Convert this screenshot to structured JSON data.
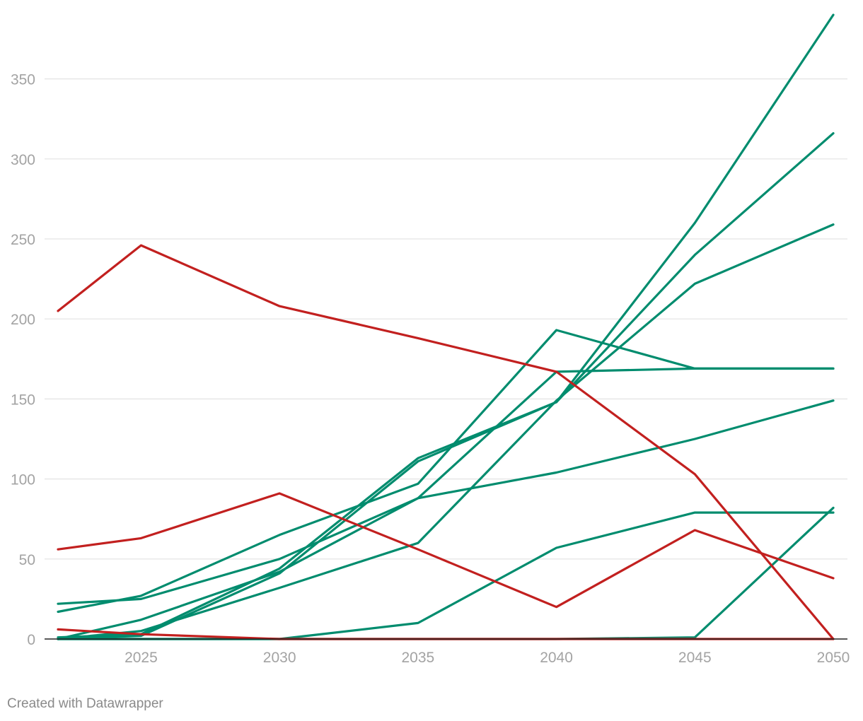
{
  "chart_data": {
    "type": "line",
    "title": "",
    "xlabel": "",
    "ylabel": "",
    "xlim": [
      2022,
      2050
    ],
    "ylim": [
      0,
      390
    ],
    "x_ticks": [
      2025,
      2030,
      2035,
      2040,
      2045,
      2050
    ],
    "x_tick_labels": [
      "2025",
      "2030",
      "2035",
      "2040",
      "2045",
      "2050"
    ],
    "y_ticks": [
      0,
      50,
      100,
      150,
      200,
      250,
      300,
      350
    ],
    "y_tick_labels": [
      "0",
      "50",
      "100",
      "150",
      "200",
      "250",
      "300",
      "350"
    ],
    "grid": "horizontal",
    "colors": {
      "growth": "#008c6e",
      "decline": "#c2201f",
      "grid": "#e3e3e3",
      "baseline": "#222222"
    },
    "x": [
      2022,
      2025,
      2030,
      2035,
      2040,
      2045,
      2050
    ],
    "series": [
      {
        "color": "#008c6e",
        "values": [
          0,
          2,
          41,
          111,
          148,
          260,
          390
        ]
      },
      {
        "color": "#008c6e",
        "values": [
          1,
          3,
          44,
          113,
          148,
          240,
          316
        ]
      },
      {
        "color": "#008c6e",
        "values": [
          0,
          5,
          32,
          60,
          149,
          222,
          259
        ]
      },
      {
        "color": "#008c6e",
        "values": [
          17,
          27,
          65,
          97,
          193,
          169,
          169
        ]
      },
      {
        "color": "#008c6e",
        "values": [
          22,
          25,
          50,
          88,
          104,
          125,
          149
        ]
      },
      {
        "color": "#008c6e",
        "values": [
          0,
          12,
          42,
          88,
          167,
          169,
          169
        ]
      },
      {
        "color": "#008c6e",
        "values": [
          0,
          0,
          0,
          10,
          57,
          79,
          79
        ]
      },
      {
        "color": "#008c6e",
        "values": [
          0,
          0,
          0,
          0,
          0,
          1,
          82
        ]
      },
      {
        "color": "#c2201f",
        "values": [
          205,
          246,
          208,
          188,
          167,
          103,
          0
        ]
      },
      {
        "color": "#c2201f",
        "values": [
          56,
          63,
          91,
          56,
          20,
          68,
          38
        ]
      },
      {
        "color": "#c2201f",
        "values": [
          6,
          3,
          0,
          0,
          0,
          0,
          0
        ]
      }
    ]
  },
  "footer": {
    "credit": "Created with Datawrapper"
  }
}
